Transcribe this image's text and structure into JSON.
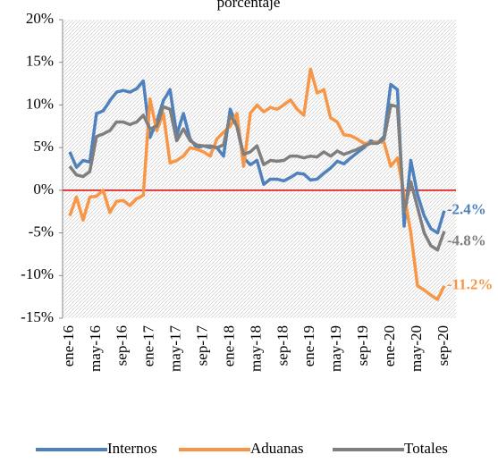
{
  "chart_data": {
    "type": "line",
    "title": "porcentaje",
    "categories": [
      "ene-16",
      null,
      null,
      null,
      "may-16",
      null,
      null,
      null,
      "sep-16",
      null,
      null,
      null,
      "ene-17",
      null,
      null,
      null,
      "may-17",
      null,
      null,
      null,
      "sep-17",
      null,
      null,
      null,
      "ene-18",
      null,
      null,
      null,
      "may-18",
      null,
      null,
      null,
      "sep-18",
      null,
      null,
      null,
      "ene-19",
      null,
      null,
      null,
      "may-19",
      null,
      null,
      null,
      "sep-19",
      null,
      null,
      null,
      "ene-20",
      null,
      null,
      null,
      "may-20",
      null,
      null,
      null,
      "sep-20"
    ],
    "series": [
      {
        "name": "Internos",
        "color": "#4f81bd",
        "end_label": "-2.4%",
        "values": [
          4.5,
          2.7,
          3.5,
          3.3,
          9.0,
          9.3,
          10.5,
          11.5,
          11.7,
          11.5,
          11.9,
          12.8,
          6.2,
          8.0,
          10.5,
          11.8,
          6.5,
          9.0,
          6.0,
          5.0,
          5.2,
          5.0,
          5.0,
          4.0,
          9.5,
          7.5,
          3.8,
          3.0,
          3.5,
          0.7,
          1.3,
          1.3,
          1.1,
          1.5,
          2.0,
          1.9,
          1.2,
          1.3,
          2.0,
          2.6,
          3.4,
          3.1,
          3.8,
          4.4,
          5.0,
          5.8,
          5.5,
          6.3,
          12.4,
          11.8,
          -4.2,
          3.5,
          -0.5,
          -3.0,
          -4.5,
          -5.0,
          -2.4
        ]
      },
      {
        "name": "Aduanas",
        "color": "#f79646",
        "end_label": "-11.2%",
        "values": [
          -3.0,
          -0.8,
          -3.5,
          -0.8,
          -0.7,
          0,
          -2.6,
          -1.3,
          -1.2,
          -1.8,
          -1.0,
          -0.6,
          10.7,
          7.0,
          9.0,
          3.2,
          3.5,
          4.0,
          5.0,
          4.8,
          4.5,
          4.0,
          6.0,
          6.8,
          7.5,
          9.0,
          2.8,
          9.0,
          10.0,
          9.2,
          9.7,
          9.5,
          10.0,
          10.6,
          9.5,
          8.8,
          14.2,
          11.4,
          11.8,
          8.5,
          8.0,
          6.5,
          6.4,
          6.0,
          5.5,
          5.5,
          5.7,
          5.6,
          2.8,
          3.8,
          -0.5,
          -5.0,
          -11.2,
          -11.7,
          -12.3,
          -12.8,
          -11.2
        ]
      },
      {
        "name": "Totales",
        "color": "#7f7f7f",
        "end_label": "-4.8%",
        "values": [
          2.8,
          1.8,
          1.6,
          2.2,
          6.3,
          6.6,
          7.0,
          8.0,
          8.0,
          7.7,
          8.0,
          8.8,
          7.2,
          7.5,
          9.8,
          9.5,
          5.8,
          7.2,
          5.8,
          5.3,
          5.2,
          5.2,
          5.0,
          5.3,
          8.8,
          7.5,
          4.2,
          4.5,
          5.2,
          3.0,
          3.5,
          3.4,
          3.5,
          4.0,
          4.0,
          3.8,
          4.0,
          3.9,
          4.5,
          4.0,
          4.6,
          4.2,
          4.5,
          4.8,
          5.2,
          5.5,
          5.5,
          6.0,
          10.0,
          9.8,
          -2.5,
          1.0,
          -2.0,
          -5.0,
          -6.5,
          -7.0,
          -4.8
        ]
      }
    ],
    "ylim": [
      -15,
      20
    ],
    "yticks": [
      {
        "value": -15,
        "label": "-15%"
      },
      {
        "value": -10,
        "label": "-10%"
      },
      {
        "value": -5,
        "label": "-5%"
      },
      {
        "value": 0,
        "label": "0%"
      },
      {
        "value": 5,
        "label": "5%"
      },
      {
        "value": 10,
        "label": "10%"
      },
      {
        "value": 15,
        "label": "15%"
      },
      {
        "value": 20,
        "label": "20%"
      }
    ],
    "zero_line_color": "#e00000",
    "legend": "bottom"
  }
}
